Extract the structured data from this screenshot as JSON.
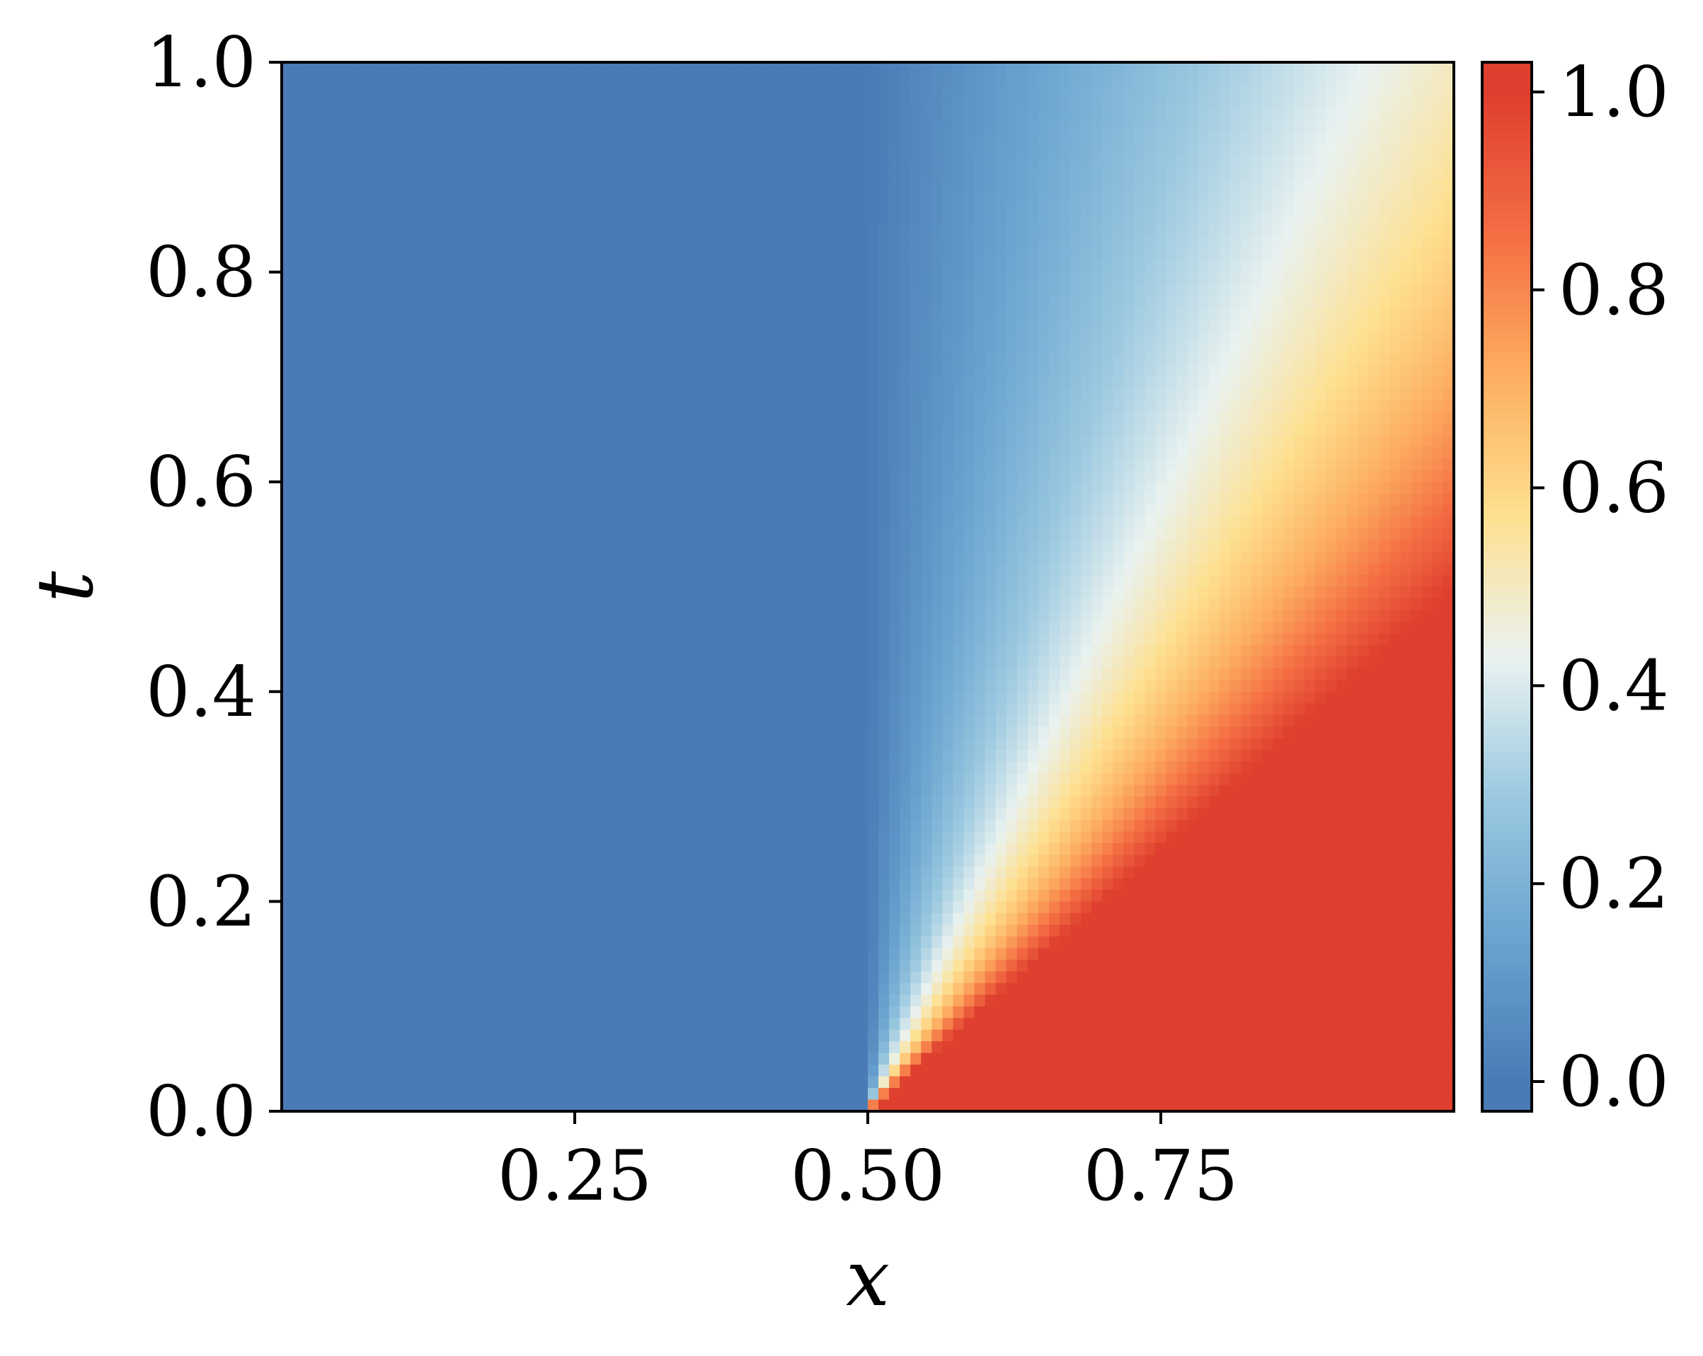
{
  "chart_data": {
    "type": "heatmap",
    "title": "",
    "xlabel": "x",
    "ylabel": "t",
    "xlim": [
      0,
      1
    ],
    "ylim": [
      0,
      1
    ],
    "x_ticks": [
      {
        "value": 0.25,
        "label": "0.25"
      },
      {
        "value": 0.5,
        "label": "0.50"
      },
      {
        "value": 0.75,
        "label": "0.75"
      }
    ],
    "y_ticks": [
      {
        "value": 0.0,
        "label": "0.0"
      },
      {
        "value": 0.2,
        "label": "0.2"
      },
      {
        "value": 0.4,
        "label": "0.4"
      },
      {
        "value": 0.6,
        "label": "0.6"
      },
      {
        "value": 0.8,
        "label": "0.8"
      },
      {
        "value": 1.0,
        "label": "1.0"
      }
    ],
    "colorbar": {
      "range": [
        -0.03,
        1.03
      ],
      "ticks": [
        {
          "value": 0.0,
          "label": "0.0"
        },
        {
          "value": 0.2,
          "label": "0.2"
        },
        {
          "value": 0.4,
          "label": "0.4"
        },
        {
          "value": 0.6,
          "label": "0.6"
        },
        {
          "value": 0.8,
          "label": "0.8"
        },
        {
          "value": 1.0,
          "label": "1.0"
        }
      ],
      "colormap": [
        "#4a7bb7",
        "#6aa3cf",
        "#9ac8e0",
        "#e9f2f0",
        "#fee090",
        "#fdae61",
        "#f46d43",
        "#de3f2e"
      ]
    },
    "field": {
      "description_values": "u(x,t): 0 for x < 0.5 - left state, 1 for x beyond the expanding front, smooth transition between x = 0.5 and x = 0.5 + t",
      "left_value": 0.0,
      "right_value": 1.0,
      "discontinuity_x": 0.5,
      "fan_speed": 1.0
    }
  }
}
